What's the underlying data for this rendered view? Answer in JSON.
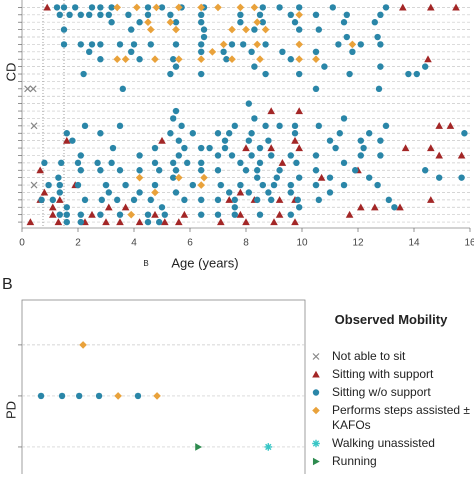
{
  "chart_data": [
    {
      "type": "scatter",
      "ylabel": "CD",
      "xlabel": "Age (years)",
      "annotation": "B",
      "xlim": [
        0,
        16
      ],
      "xticks": [
        0,
        2,
        4,
        6,
        8,
        10,
        12,
        14,
        16
      ],
      "ylim": [
        0,
        30.8
      ],
      "yticks": [
        1,
        2,
        3,
        4,
        5,
        6,
        7,
        8,
        9,
        10,
        11,
        12,
        13,
        14,
        15,
        16,
        17,
        18,
        19,
        20,
        21,
        22,
        23,
        24,
        25,
        26,
        27,
        28,
        29,
        30
      ],
      "vlines": [
        0.75,
        1.5
      ],
      "grid": true,
      "series": [
        {
          "marker": "x",
          "color": "#888888",
          "x": [
            0.2,
            0.4,
            0.43,
            0.43
          ],
          "values": [
            12,
            12,
            17,
            25
          ]
        },
        {
          "marker": "triangle",
          "color": "#a32626",
          "x": [
            0.9,
            13.6,
            14.6,
            15.5,
            14.5,
            8.9,
            9.9,
            14.9,
            15.3,
            1.6,
            5.0,
            9.75,
            8.0,
            8.9,
            9.9,
            13.7,
            14.6,
            14.9,
            15.7,
            9.3,
            0.65,
            12.0,
            10.7,
            1.9,
            0.8,
            7.8,
            0.65,
            1.35,
            7.4,
            8.3,
            9.2,
            9.75,
            14.6,
            1.1,
            3.1,
            3.7,
            12.1,
            12.6,
            13.5,
            1.1,
            2.5,
            4.75,
            5.8,
            7.8,
            9.2,
            11.7,
            0.3,
            1.3,
            2.25,
            3.0,
            3.5,
            4.2,
            5.1,
            5.6,
            7.1,
            8.0,
            9.0,
            9.75
          ],
          "values": [
            1,
            1,
            1,
            1,
            8,
            15,
            15,
            17,
            17,
            19,
            19,
            19,
            20,
            20,
            20,
            20,
            20,
            21,
            21,
            22,
            23,
            23,
            24,
            25,
            26,
            26,
            27,
            27,
            27,
            27,
            27,
            27,
            27,
            28,
            28,
            28,
            28,
            28,
            28,
            29,
            29,
            29,
            29,
            29,
            29,
            29,
            30,
            30,
            30,
            30,
            30,
            30,
            30,
            30,
            30,
            30,
            30,
            30
          ]
        },
        {
          "marker": "circle",
          "color": "#2a86a8",
          "x": [
            1.25,
            1.5,
            1.9,
            2.5,
            2.8,
            3.2,
            4.5,
            5.0,
            5.7,
            6.5,
            8.6,
            9.2,
            9.9,
            11.1,
            13.0,
            1.35,
            1.7,
            2.1,
            2.4,
            2.8,
            3.1,
            3.8,
            4.5,
            5.3,
            6.4,
            7.8,
            8.5,
            9.6,
            10.5,
            11.6,
            12.8,
            3.2,
            4.2,
            5.5,
            6.4,
            7.8,
            8.6,
            9.75,
            11.5,
            12.6,
            1.5,
            3.9,
            6.5,
            8.3,
            9.9,
            10.6,
            6.5,
            11.6,
            12.7,
            1.5,
            2.1,
            2.5,
            2.8,
            3.5,
            4.0,
            4.6,
            5.5,
            6.4,
            7.5,
            7.9,
            8.7,
            11.3,
            12.1,
            12.8,
            2.4,
            3.9,
            6.4,
            7.2,
            8.2,
            9.3,
            10.5,
            11.8,
            2.8,
            4.2,
            5.4,
            7.3,
            9.6,
            5.5,
            8.3,
            10.8,
            12.8,
            14.4,
            2.2,
            5.3,
            6.4,
            8.7,
            9.9,
            11.7,
            13.8,
            14.1,
            3.6,
            10.5,
            12.75,
            8.1,
            5.5,
            5.4,
            8.3,
            11.5,
            2.25,
            3.5,
            5.7,
            7.6,
            8.7,
            9.2,
            9.75,
            10.6,
            13.0,
            1.6,
            2.8,
            5.3,
            6.1,
            7.0,
            7.4,
            8.2,
            9.75,
            11.35,
            12.4,
            15.8,
            1.8,
            5.6,
            7.25,
            8.1,
            8.8,
            11.0,
            12.1,
            12.8,
            3.25,
            4.75,
            5.8,
            6.4,
            6.7,
            7.25,
            8.5,
            11.2,
            12.2,
            2.1,
            4.2,
            5.6,
            7.0,
            7.5,
            8.2,
            8.9,
            9.6,
            10.5,
            12.1,
            12.8,
            0.8,
            1.4,
            2.0,
            2.7,
            3.2,
            4.75,
            5.4,
            5.9,
            6.4,
            7.8,
            8.5,
            9.8,
            11.5,
            2.1,
            2.8,
            3.5,
            4.2,
            4.9,
            5.5,
            6.4,
            7.0,
            8.0,
            8.4,
            9.2,
            10.5,
            11.9,
            14.4,
            1.3,
            5.4,
            8.4,
            9.1,
            9.9,
            11.0,
            12.4,
            14.9,
            15.7,
            0.95,
            1.35,
            2.0,
            3.0,
            3.7,
            4.75,
            6.1,
            7.1,
            7.8,
            8.6,
            9.0,
            9.6,
            10.5,
            11.5,
            12.7,
            1.35,
            3.1,
            4.2,
            5.5,
            7.4,
            8.1,
            8.8,
            9.6,
            11.0,
            0.7,
            1.1,
            2.25,
            2.85,
            3.4,
            4.0,
            4.6,
            5.8,
            6.4,
            7.0,
            7.6,
            8.4,
            8.9,
            9.85,
            10.6,
            13.1,
            1.6,
            5.0,
            7.6,
            9.9,
            13.3,
            1.35,
            1.6,
            2.1,
            2.8,
            3.5,
            4.5,
            5.1,
            6.4,
            7.0,
            7.6,
            8.5,
            9.6,
            1.6,
            2.1,
            4.5,
            4.9
          ],
          "values": [
            1,
            1,
            1,
            1,
            1,
            1,
            1,
            1,
            1,
            1,
            1,
            1,
            1,
            1,
            1,
            2,
            2,
            2,
            2,
            2,
            2,
            2,
            2,
            2,
            2,
            2,
            2,
            2,
            2,
            2,
            2,
            3,
            3,
            3,
            3,
            3,
            3,
            3,
            3,
            3,
            4,
            4,
            4,
            4,
            4,
            4,
            5,
            5,
            5,
            6,
            6,
            6,
            6,
            6,
            6,
            6,
            6,
            6,
            6,
            6,
            6,
            6,
            6,
            6,
            7,
            7,
            7,
            7,
            7,
            7,
            7,
            7,
            8,
            8,
            8,
            8,
            8,
            9,
            9,
            9,
            9,
            9,
            10,
            10,
            10,
            10,
            10,
            10,
            10,
            10,
            12,
            12,
            12,
            14,
            15,
            16,
            16,
            16,
            17,
            17,
            17,
            17,
            17,
            17,
            17,
            17,
            17,
            18,
            18,
            18,
            18,
            18,
            18,
            18,
            18,
            18,
            18,
            18,
            19,
            19,
            19,
            19,
            19,
            19,
            19,
            19,
            20,
            20,
            20,
            20,
            20,
            20,
            20,
            20,
            20,
            21,
            21,
            21,
            21,
            21,
            21,
            21,
            21,
            21,
            21,
            21,
            22,
            22,
            22,
            22,
            22,
            22,
            22,
            22,
            22,
            22,
            22,
            22,
            22,
            23,
            23,
            23,
            23,
            23,
            23,
            23,
            23,
            23,
            23,
            23,
            23,
            23,
            23,
            24,
            24,
            24,
            24,
            24,
            24,
            24,
            24,
            24,
            25,
            25,
            25,
            25,
            25,
            25,
            25,
            25,
            25,
            25,
            25,
            25,
            25,
            25,
            25,
            26,
            26,
            26,
            26,
            26,
            26,
            26,
            26,
            26,
            27,
            27,
            27,
            27,
            27,
            27,
            27,
            27,
            27,
            27,
            27,
            27,
            27,
            27,
            27,
            27,
            28,
            28,
            28,
            28,
            28,
            29,
            29,
            29,
            29,
            29,
            29,
            29,
            29,
            29,
            29,
            29,
            29,
            30,
            30,
            30,
            30
          ]
        },
        {
          "marker": "diamond",
          "color": "#e9a23b",
          "x": [
            3.4,
            4.1,
            4.8,
            5.6,
            6.4,
            7.0,
            7.8,
            8.3,
            9.9,
            4.5,
            5.3,
            8.4,
            4.6,
            5.5,
            7.5,
            8.0,
            8.7,
            7.2,
            8.4,
            9.9,
            11.8,
            6.8,
            3.4,
            3.7,
            4.75,
            5.6,
            6.4,
            7.5,
            8.5,
            9.9,
            10.5,
            4.2,
            5.6,
            6.5,
            6.4,
            4.75,
            3.9
          ],
          "values": [
            1,
            1,
            1,
            1,
            1,
            1,
            1,
            1,
            2,
            3,
            3,
            3,
            4,
            4,
            4,
            4,
            4,
            6,
            6,
            6,
            6,
            7,
            8,
            8,
            8,
            8,
            8,
            8,
            8,
            8,
            8,
            24,
            24,
            24,
            25,
            26,
            29
          ]
        }
      ]
    },
    {
      "type": "scatter",
      "panel_label": "B",
      "ylabel": "PD",
      "legend_title": "Observed Mobility",
      "xlim": [
        0,
        10.1
      ],
      "ylim": [
        0.12,
        3.53
      ],
      "yticks": [
        1,
        2,
        3
      ],
      "grid": true,
      "series": [
        {
          "name": "Not able to sit",
          "marker": "x",
          "color": "#888888",
          "x": [],
          "values": []
        },
        {
          "name": "Sitting with support",
          "marker": "triangle",
          "color": "#a32626",
          "x": [],
          "values": []
        },
        {
          "name": "Sitting w/o support",
          "marker": "circle",
          "color": "#2a86a8",
          "x": [
            0.68,
            1.43,
            2.04,
            2.75,
            4.14
          ],
          "values": [
            2,
            2,
            2,
            2,
            2
          ]
        },
        {
          "name": "Performs steps assisted ± KAFOs",
          "marker": "diamond",
          "color": "#e9a23b",
          "x": [
            2.18,
            3.43,
            4.82
          ],
          "values": [
            1,
            2,
            2
          ]
        },
        {
          "name": "Walking unassisted",
          "marker": "asterisk",
          "color": "#39c6c6",
          "x": [
            8.79
          ],
          "values": [
            3
          ]
        },
        {
          "name": "Running",
          "marker": "triangle-right",
          "color": "#2e8b4f",
          "x": [
            6.29
          ],
          "values": [
            3
          ]
        }
      ]
    }
  ]
}
